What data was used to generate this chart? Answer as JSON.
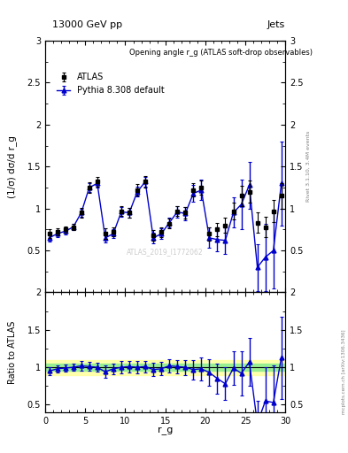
{
  "title_top": "13000 GeV pp",
  "title_right": "Jets",
  "plot_title": "Opening angle r_g (ATLAS soft-drop observables)",
  "ylabel_main": "(1/σ) dσ/d r_g",
  "ylabel_ratio": "Ratio to ATLAS",
  "xlabel": "r_g",
  "right_label": "Rivet 3.1.10, 3.4M events",
  "right_label2": "mcplots.cern.ch [arXiv:1306.3436]",
  "watermark": "ATLAS_2019_I1772062",
  "atlas_x": [
    0.5,
    1.5,
    2.5,
    3.5,
    4.5,
    5.5,
    6.5,
    7.5,
    8.5,
    9.5,
    10.5,
    11.5,
    12.5,
    13.5,
    14.5,
    15.5,
    16.5,
    17.5,
    18.5,
    19.5,
    20.5,
    21.5,
    22.5,
    23.5,
    24.5,
    25.5,
    26.5,
    27.5,
    28.5,
    29.5
  ],
  "atlas_y": [
    0.7,
    0.72,
    0.75,
    0.78,
    0.95,
    1.25,
    1.32,
    0.7,
    0.72,
    0.97,
    0.95,
    1.22,
    1.32,
    0.68,
    0.72,
    0.82,
    0.97,
    0.95,
    1.22,
    1.25,
    0.7,
    0.75,
    0.8,
    0.97,
    1.15,
    1.2,
    0.83,
    0.78,
    0.97,
    1.15
  ],
  "atlas_yerr": [
    0.05,
    0.04,
    0.04,
    0.04,
    0.06,
    0.06,
    0.06,
    0.06,
    0.05,
    0.06,
    0.06,
    0.07,
    0.07,
    0.06,
    0.06,
    0.06,
    0.06,
    0.07,
    0.08,
    0.08,
    0.08,
    0.08,
    0.09,
    0.1,
    0.12,
    0.13,
    0.12,
    0.12,
    0.13,
    0.15
  ],
  "pythia_x": [
    0.5,
    1.5,
    2.5,
    3.5,
    4.5,
    5.5,
    6.5,
    7.5,
    8.5,
    9.5,
    10.5,
    11.5,
    12.5,
    13.5,
    14.5,
    15.5,
    16.5,
    17.5,
    18.5,
    19.5,
    20.5,
    21.5,
    22.5,
    23.5,
    24.5,
    25.5,
    26.5,
    27.5,
    28.5,
    29.5
  ],
  "pythia_y": [
    0.65,
    0.7,
    0.73,
    0.78,
    0.95,
    1.25,
    1.3,
    0.65,
    0.7,
    0.96,
    0.95,
    1.2,
    1.32,
    0.65,
    0.7,
    0.83,
    0.96,
    0.94,
    1.18,
    1.22,
    0.65,
    0.63,
    0.62,
    0.95,
    1.05,
    1.28,
    0.3,
    0.42,
    0.5,
    1.3
  ],
  "pythia_yerr": [
    0.04,
    0.04,
    0.04,
    0.04,
    0.05,
    0.05,
    0.05,
    0.05,
    0.05,
    0.06,
    0.06,
    0.06,
    0.06,
    0.06,
    0.06,
    0.06,
    0.07,
    0.08,
    0.1,
    0.12,
    0.12,
    0.14,
    0.16,
    0.18,
    0.3,
    0.28,
    0.28,
    0.4,
    0.45,
    0.5
  ],
  "ratio_x": [
    0.5,
    1.5,
    2.5,
    3.5,
    4.5,
    5.5,
    6.5,
    7.5,
    8.5,
    9.5,
    10.5,
    11.5,
    12.5,
    13.5,
    14.5,
    15.5,
    16.5,
    17.5,
    18.5,
    19.5,
    20.5,
    21.5,
    22.5,
    23.5,
    24.5,
    25.5,
    26.5,
    27.5,
    28.5,
    29.5
  ],
  "ratio_y": [
    0.95,
    0.98,
    0.99,
    1.0,
    1.02,
    1.01,
    1.0,
    0.94,
    0.98,
    1.0,
    1.01,
    1.0,
    1.01,
    0.97,
    0.98,
    1.02,
    1.01,
    1.0,
    0.97,
    0.98,
    0.93,
    0.85,
    0.78,
    0.99,
    0.92,
    1.07,
    0.25,
    0.55,
    0.53,
    1.13
  ],
  "ratio_yerr": [
    0.05,
    0.05,
    0.05,
    0.05,
    0.06,
    0.06,
    0.06,
    0.08,
    0.07,
    0.08,
    0.08,
    0.08,
    0.08,
    0.09,
    0.09,
    0.09,
    0.09,
    0.1,
    0.13,
    0.15,
    0.18,
    0.2,
    0.22,
    0.22,
    0.3,
    0.32,
    0.3,
    0.45,
    0.5,
    0.55
  ],
  "atlas_color": "black",
  "pythia_color": "#0000cc",
  "band_color_green": "#90ee90",
  "band_color_yellow": "#ffff99",
  "main_ylim": [
    0,
    3.0
  ],
  "ratio_ylim": [
    0.4,
    2.0
  ],
  "xlim": [
    0,
    30
  ]
}
